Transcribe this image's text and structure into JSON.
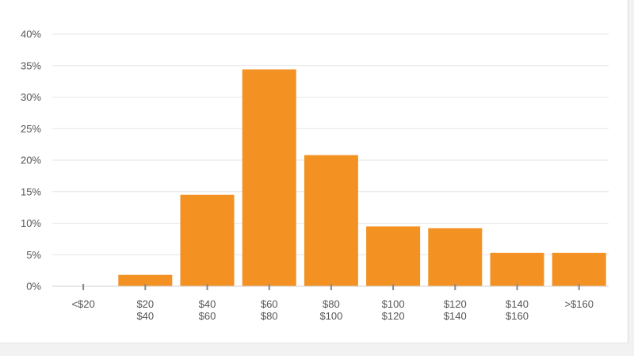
{
  "chart_data": {
    "type": "bar",
    "categories": [
      [
        "<$20"
      ],
      [
        "$20",
        "$40"
      ],
      [
        "$40",
        "$60"
      ],
      [
        "$60",
        "$80"
      ],
      [
        "$80",
        "$100"
      ],
      [
        "$100",
        "$120"
      ],
      [
        "$120",
        "$140"
      ],
      [
        "$140",
        "$160"
      ],
      [
        ">$160"
      ]
    ],
    "values": [
      0,
      1.8,
      14.5,
      34.4,
      20.8,
      9.5,
      9.2,
      5.3,
      5.3
    ],
    "y_ticks": [
      "0%",
      "5%",
      "10%",
      "15%",
      "20%",
      "25%",
      "30%",
      "35%",
      "40%"
    ],
    "ylim": [
      0,
      40
    ],
    "grid": true,
    "legend": false,
    "title": "",
    "xlabel": "",
    "ylabel": "",
    "bar_color": "#f39223",
    "grid_color": "#e6e6e6",
    "axis_color": "#888888",
    "label_color": "#555555"
  }
}
